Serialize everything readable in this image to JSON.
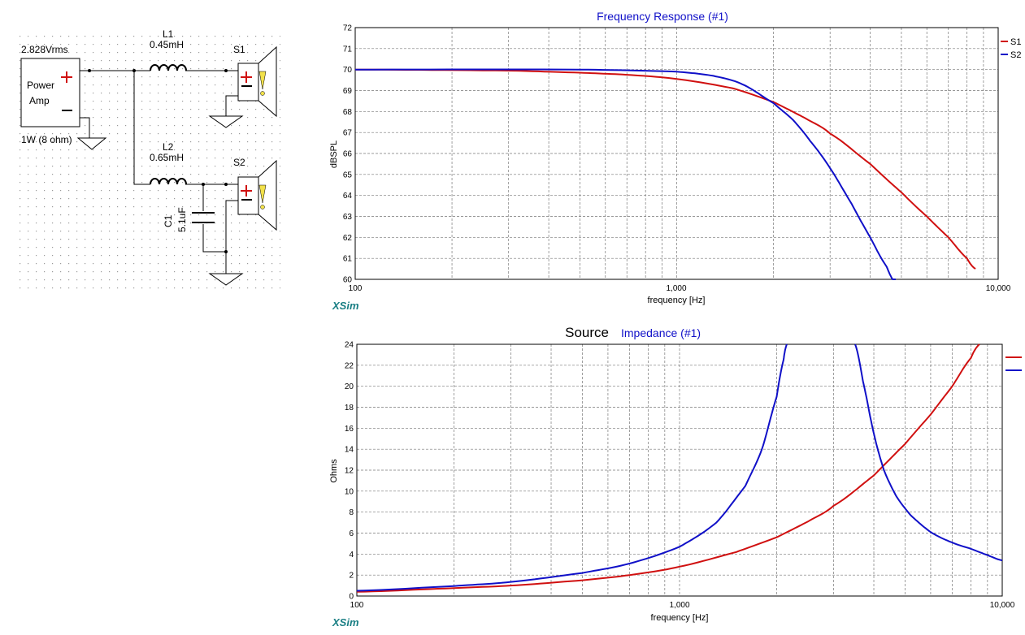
{
  "schematic": {
    "source": {
      "voltage": "2.828Vrms",
      "label_line1": "Power",
      "label_line2": "Amp",
      "rating": "1W (8 ohm)"
    },
    "l1": {
      "name": "L1",
      "value": "0.45mH"
    },
    "l2": {
      "name": "L2",
      "value": "0.65mH"
    },
    "c1": {
      "name": "C1",
      "value": "5.1uF"
    },
    "s1": {
      "name": "S1"
    },
    "s2": {
      "name": "S2"
    }
  },
  "brand": "XSim",
  "colors": {
    "s1": "#d01010",
    "s2": "#1010c8",
    "title": "#1010c8",
    "grid": "#777777"
  },
  "chart_data": [
    {
      "type": "line",
      "title": "Frequency Response (#1)",
      "xlabel": "frequency [Hz]",
      "ylabel": "dBSPL",
      "xscale": "log",
      "xlim": [
        100,
        10000
      ],
      "ylim": [
        60,
        72
      ],
      "xticklabels": [
        "100",
        "1,000",
        "10,000"
      ],
      "yticks": [
        60,
        61,
        62,
        63,
        64,
        65,
        66,
        67,
        68,
        69,
        70,
        71,
        72
      ],
      "grid": true,
      "legend": "top-right",
      "series": [
        {
          "name": "S1",
          "color": "#d01010",
          "x": [
            100,
            300,
            500,
            700,
            1000,
            1500,
            2000,
            2500,
            3000,
            4000,
            5000,
            6000,
            7000,
            8000,
            8500
          ],
          "y": [
            70.0,
            69.95,
            69.85,
            69.75,
            69.55,
            69.1,
            68.45,
            67.7,
            66.95,
            65.5,
            64.15,
            63.0,
            62.0,
            61.0,
            60.5
          ]
        },
        {
          "name": "S2",
          "color": "#1010c8",
          "x": [
            100,
            500,
            1000,
            1300,
            1600,
            2000,
            2300,
            2600,
            3000,
            3500,
            4000,
            4500,
            4800
          ],
          "y": [
            70.0,
            70.0,
            69.9,
            69.7,
            69.3,
            68.4,
            67.6,
            66.6,
            65.3,
            63.6,
            62.0,
            60.6,
            59.8
          ]
        }
      ]
    },
    {
      "type": "line",
      "title": "Source",
      "subtitle": "Impedance (#1)",
      "xlabel": "frequency [Hz]",
      "ylabel": "Ohms",
      "xscale": "log",
      "xlim": [
        100,
        10000
      ],
      "ylim": [
        0,
        24
      ],
      "xticklabels": [
        "100",
        "1,000",
        "10,000"
      ],
      "yticks": [
        0,
        2,
        4,
        6,
        8,
        10,
        12,
        14,
        16,
        18,
        20,
        22,
        24
      ],
      "grid": true,
      "legend": "top-right",
      "series": [
        {
          "name": "",
          "color": "#d01010",
          "x": [
            100,
            200,
            300,
            500,
            700,
            1000,
            1500,
            2000,
            2500,
            3000,
            4000,
            5000,
            6000,
            7000,
            8000,
            8500
          ],
          "y": [
            0.4,
            0.75,
            1.0,
            1.5,
            2.0,
            2.8,
            4.2,
            5.6,
            7.1,
            8.6,
            11.5,
            14.5,
            17.3,
            20.0,
            22.7,
            24.0
          ]
        },
        {
          "name": "",
          "color": "#1010c8",
          "x": [
            100,
            200,
            300,
            500,
            700,
            1000,
            1300,
            1600,
            1800,
            2000,
            2100,
            2150
          ],
          "y": [
            0.5,
            0.95,
            1.35,
            2.2,
            3.1,
            4.7,
            7.0,
            10.5,
            14.0,
            19.0,
            22.5,
            24.0
          ]
        },
        {
          "name": "",
          "color": "#1010c8",
          "x": [
            3500,
            3700,
            4000,
            4300,
            4700,
            5200,
            6000,
            7000,
            8000,
            9000,
            10000
          ],
          "y": [
            24.0,
            20.5,
            15.5,
            12.0,
            9.5,
            7.7,
            6.1,
            5.1,
            4.5,
            3.9,
            3.4
          ]
        }
      ]
    }
  ]
}
